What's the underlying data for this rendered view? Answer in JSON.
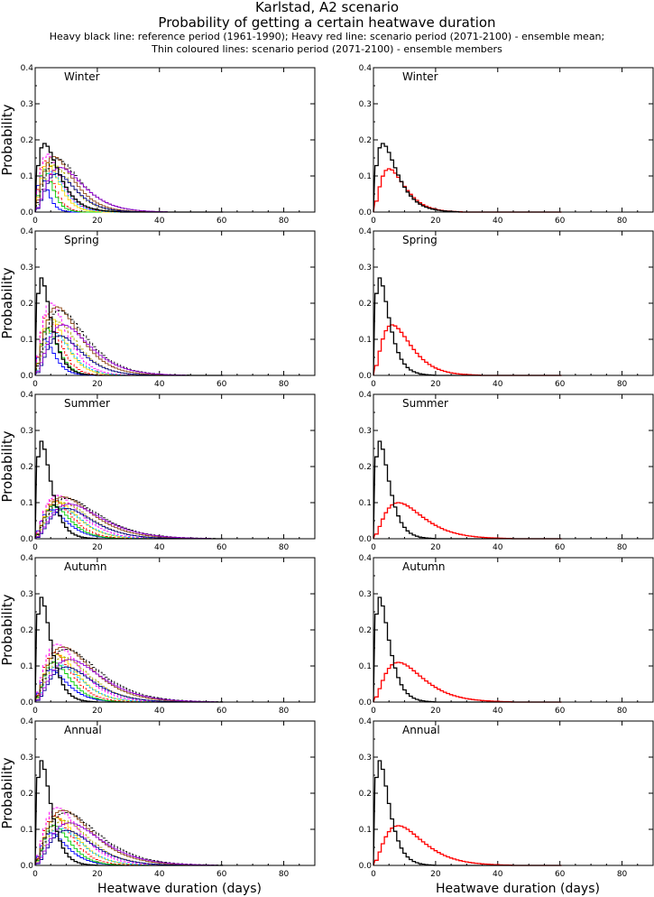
{
  "header": {
    "line1": "Karlstad, A2 scenario",
    "line2": "Probability of getting a certain heatwave duration",
    "line3": "Heavy black line: reference period (1961-1990); Heavy red line: scenario period (2071-2100) - ensemble mean;",
    "line4": "Thin coloured lines: scenario period (2071-2100) - ensemble members"
  },
  "axes": {
    "ylabel": "Probability",
    "xlabel": "Heatwave duration (days)",
    "xlim": [
      0,
      90
    ],
    "ylim": [
      0,
      0.4
    ],
    "xticks": [
      "0",
      "20",
      "40",
      "60",
      "80"
    ],
    "yticks": [
      "0.0",
      "0.1",
      "0.2",
      "0.3",
      "0.4"
    ]
  },
  "colors": {
    "reference": "#000000",
    "scenario_mean": "#ff0000",
    "members": [
      "#0000ff",
      "#ff0000",
      "#00cc00",
      "#ff00ff",
      "#ffd700",
      "#00bfff",
      "#8b4513",
      "#aaaa00",
      "#00008b",
      "#000000",
      "#9400d3"
    ]
  },
  "chart_data": [
    {
      "type": "line",
      "panel": "members",
      "season": "Winter",
      "reference_peak": {
        "x": 3,
        "y": 0.19
      },
      "scenario_mean_peak": {
        "x": 5,
        "y": 0.12
      },
      "member_peak_range": [
        0.1,
        0.16
      ]
    },
    {
      "type": "line",
      "panel": "mean",
      "season": "Winter",
      "reference_peak": {
        "x": 3,
        "y": 0.19
      },
      "scenario_mean_peak": {
        "x": 5,
        "y": 0.12
      }
    },
    {
      "type": "line",
      "panel": "members",
      "season": "Spring",
      "reference_peak": {
        "x": 2,
        "y": 0.27
      },
      "scenario_mean_peak": {
        "x": 6,
        "y": 0.14
      },
      "member_peak_range": [
        0.1,
        0.2
      ]
    },
    {
      "type": "line",
      "panel": "mean",
      "season": "Spring",
      "reference_peak": {
        "x": 2,
        "y": 0.27
      },
      "scenario_mean_peak": {
        "x": 6,
        "y": 0.14
      }
    },
    {
      "type": "line",
      "panel": "members",
      "season": "Summer",
      "reference_peak": {
        "x": 2,
        "y": 0.27
      },
      "scenario_mean_peak": {
        "x": 8,
        "y": 0.1
      },
      "member_peak_range": [
        0.08,
        0.12
      ]
    },
    {
      "type": "line",
      "panel": "mean",
      "season": "Summer",
      "reference_peak": {
        "x": 2,
        "y": 0.27
      },
      "scenario_mean_peak": {
        "x": 8,
        "y": 0.1
      }
    },
    {
      "type": "line",
      "panel": "members",
      "season": "Autumn",
      "reference_peak": {
        "x": 2,
        "y": 0.29
      },
      "scenario_mean_peak": {
        "x": 8,
        "y": 0.11
      },
      "member_peak_range": [
        0.09,
        0.16
      ]
    },
    {
      "type": "line",
      "panel": "mean",
      "season": "Autumn",
      "reference_peak": {
        "x": 2,
        "y": 0.29
      },
      "scenario_mean_peak": {
        "x": 8,
        "y": 0.11
      }
    },
    {
      "type": "line",
      "panel": "members",
      "season": "Annual",
      "reference_peak": {
        "x": 2,
        "y": 0.29
      },
      "scenario_mean_peak": {
        "x": 8,
        "y": 0.11
      },
      "member_peak_range": [
        0.09,
        0.16
      ]
    },
    {
      "type": "line",
      "panel": "mean",
      "season": "Annual",
      "reference_peak": {
        "x": 2,
        "y": 0.29
      },
      "scenario_mean_peak": {
        "x": 8,
        "y": 0.11
      }
    }
  ]
}
